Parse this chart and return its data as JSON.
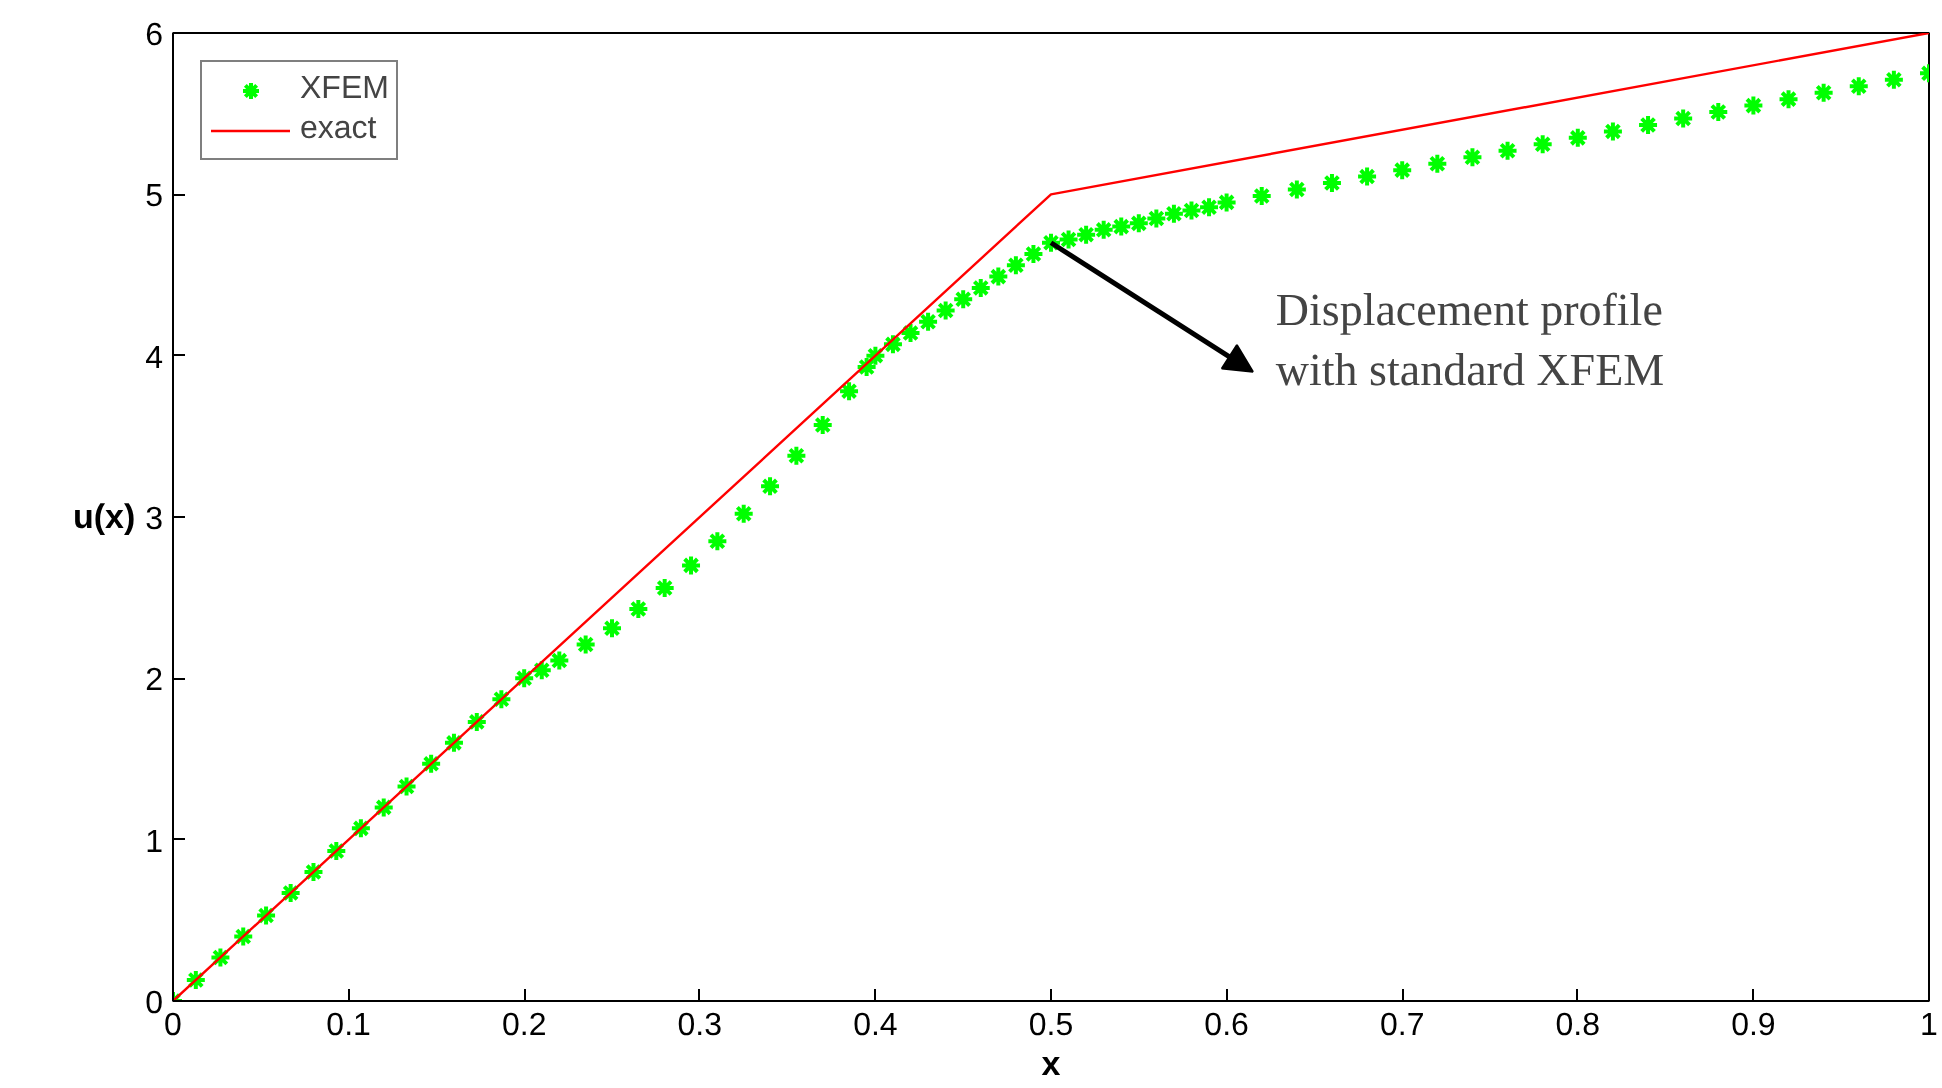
{
  "chart_data": {
    "type": "line",
    "xlabel": "x",
    "ylabel": "u(x)",
    "xlim": [
      0,
      1
    ],
    "ylim": [
      0,
      6
    ],
    "xticks": [
      0,
      0.1,
      0.2,
      0.3,
      0.4,
      0.5,
      0.6,
      0.7,
      0.8,
      0.9,
      1
    ],
    "yticks": [
      0,
      1,
      2,
      3,
      4,
      5,
      6
    ],
    "grid": false,
    "legend": "top left",
    "annotations": [
      {
        "text": "Displacement profile\nwith standard XFEM",
        "x": 0.5,
        "y": 4.7
      }
    ],
    "series": [
      {
        "name": "XFEM",
        "type": "scatter",
        "marker": "cross",
        "color": "#00ff00",
        "x": [
          0,
          0.013,
          0.027,
          0.04,
          0.053,
          0.067,
          0.08,
          0.093,
          0.107,
          0.12,
          0.133,
          0.147,
          0.16,
          0.173,
          0.187,
          0.2,
          0.21,
          0.22,
          0.235,
          0.25,
          0.265,
          0.28,
          0.295,
          0.31,
          0.325,
          0.34,
          0.355,
          0.37,
          0.385,
          0.395,
          0.4,
          0.41,
          0.42,
          0.43,
          0.44,
          0.45,
          0.46,
          0.47,
          0.48,
          0.49,
          0.5,
          0.51,
          0.52,
          0.53,
          0.54,
          0.55,
          0.56,
          0.57,
          0.58,
          0.59,
          0.6,
          0.62,
          0.64,
          0.66,
          0.68,
          0.7,
          0.72,
          0.74,
          0.76,
          0.78,
          0.8,
          0.82,
          0.84,
          0.86,
          0.88,
          0.9,
          0.92,
          0.94,
          0.96,
          0.98,
          1
        ],
        "values": [
          0,
          0.13,
          0.27,
          0.4,
          0.53,
          0.67,
          0.8,
          0.93,
          1.07,
          1.2,
          1.33,
          1.47,
          1.6,
          1.73,
          1.87,
          2.0,
          2.05,
          2.11,
          2.21,
          2.31,
          2.43,
          2.56,
          2.7,
          2.85,
          3.02,
          3.19,
          3.38,
          3.57,
          3.78,
          3.93,
          4.0,
          4.07,
          4.14,
          4.21,
          4.28,
          4.35,
          4.42,
          4.49,
          4.56,
          4.63,
          4.7,
          4.72,
          4.75,
          4.78,
          4.8,
          4.82,
          4.85,
          4.88,
          4.9,
          4.92,
          4.95,
          4.99,
          5.03,
          5.07,
          5.11,
          5.15,
          5.19,
          5.23,
          5.27,
          5.31,
          5.35,
          5.39,
          5.43,
          5.47,
          5.51,
          5.55,
          5.59,
          5.63,
          5.67,
          5.71,
          5.75
        ]
      },
      {
        "name": "exact",
        "line_style": "solid",
        "color": "#ff0000",
        "x": [
          0,
          0.5,
          1
        ],
        "values": [
          0,
          5,
          6
        ]
      }
    ]
  }
}
